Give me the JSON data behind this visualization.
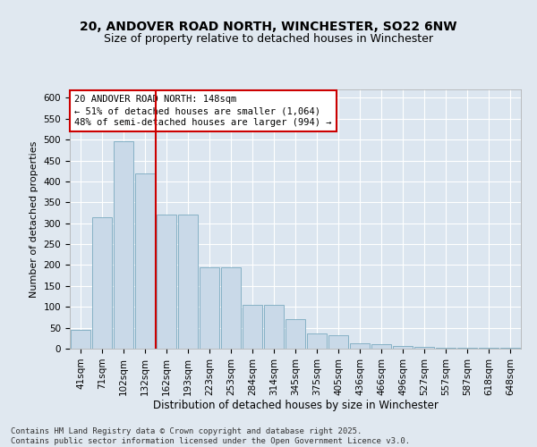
{
  "title1": "20, ANDOVER ROAD NORTH, WINCHESTER, SO22 6NW",
  "title2": "Size of property relative to detached houses in Winchester",
  "xlabel": "Distribution of detached houses by size in Winchester",
  "ylabel": "Number of detached properties",
  "categories": [
    "41sqm",
    "71sqm",
    "102sqm",
    "132sqm",
    "162sqm",
    "193sqm",
    "223sqm",
    "253sqm",
    "284sqm",
    "314sqm",
    "345sqm",
    "375sqm",
    "405sqm",
    "436sqm",
    "466sqm",
    "496sqm",
    "527sqm",
    "557sqm",
    "587sqm",
    "618sqm",
    "648sqm"
  ],
  "values": [
    45,
    315,
    495,
    420,
    320,
    320,
    195,
    195,
    105,
    105,
    70,
    37,
    32,
    12,
    10,
    7,
    5,
    3,
    2,
    2,
    2
  ],
  "bar_color": "#c9d9e8",
  "bar_edge_color": "#7aaabf",
  "vline_color": "#cc0000",
  "vline_pos": 3.5,
  "annotation_text": "20 ANDOVER ROAD NORTH: 148sqm\n← 51% of detached houses are smaller (1,064)\n48% of semi-detached houses are larger (994) →",
  "annotation_box_facecolor": "#ffffff",
  "annotation_box_edgecolor": "#cc0000",
  "ylim": [
    0,
    620
  ],
  "yticks": [
    0,
    50,
    100,
    150,
    200,
    250,
    300,
    350,
    400,
    450,
    500,
    550,
    600
  ],
  "background_color": "#e0e8f0",
  "plot_bg_color": "#dce6f0",
  "footer_text": "Contains HM Land Registry data © Crown copyright and database right 2025.\nContains public sector information licensed under the Open Government Licence v3.0.",
  "title1_fontsize": 10,
  "title2_fontsize": 9,
  "xlabel_fontsize": 8.5,
  "ylabel_fontsize": 8,
  "tick_fontsize": 7.5,
  "annotation_fontsize": 7.5,
  "footer_fontsize": 6.5
}
